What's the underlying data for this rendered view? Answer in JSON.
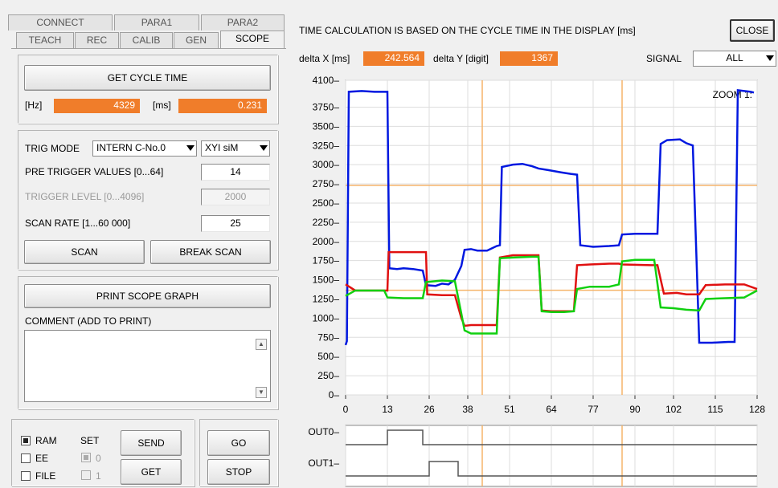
{
  "tabs_row1": [
    "CONNECT",
    "PARA1",
    "PARA2"
  ],
  "tabs_row2": [
    "TEACH",
    "REC",
    "CALIB",
    "GEN",
    "SCOPE"
  ],
  "active_tab": "SCOPE",
  "cycle": {
    "button": "GET CYCLE TIME",
    "hz_label": "[Hz]",
    "hz_value": "4329",
    "ms_label": "[ms]",
    "ms_value": "0.231"
  },
  "trigger": {
    "mode_label": "TRIG MODE",
    "mode_value": "INTERN C-No.0",
    "signal_value": "XYI siM",
    "pre_label": "PRE TRIGGER VALUES [0...64]",
    "pre_value": "14",
    "level_label": "TRIGGER LEVEL [0...4096]",
    "level_value": "2000",
    "rate_label": "SCAN RATE [1...60 000]",
    "rate_value": "25",
    "scan_button": "SCAN",
    "break_button": "BREAK SCAN"
  },
  "print": {
    "button": "PRINT SCOPE GRAPH",
    "comment_label": "COMMENT (ADD TO PRINT)"
  },
  "memory": {
    "ram": "RAM",
    "ee": "EE",
    "file": "FILE",
    "set": "SET",
    "set0": "0",
    "set1": "1",
    "send": "SEND",
    "get": "GET",
    "go": "GO",
    "stop": "STOP"
  },
  "header": {
    "info": "TIME CALCULATION IS BASED ON THE CYCLE TIME IN THE DISPLAY [ms]",
    "close": "CLOSE"
  },
  "deltas": {
    "dx_label": "delta X [ms]",
    "dx_value": "242.564",
    "dy_label": "delta Y [digit]",
    "dy_value": "1367",
    "signal_label": "SIGNAL",
    "signal_value": "ALL"
  },
  "zoom": "ZOOM 1:",
  "out_labels": [
    "OUT0",
    "OUT1"
  ],
  "chart_data": {
    "type": "line",
    "xlim": [
      0,
      128
    ],
    "ylim": [
      0,
      4100
    ],
    "xticks": [
      0,
      13,
      26,
      38,
      51,
      64,
      77,
      90,
      102,
      115,
      128
    ],
    "yticks": [
      0,
      250,
      500,
      750,
      1000,
      1250,
      1500,
      1750,
      2000,
      2250,
      2500,
      2750,
      3000,
      3250,
      3500,
      3750,
      4100
    ],
    "grid": true,
    "cursors_x": [
      42.5,
      86
    ],
    "cursors_y": [
      2730,
      1363
    ],
    "series": [
      {
        "color": "#0018e0",
        "points": [
          [
            0,
            650
          ],
          [
            0.4,
            700
          ],
          [
            1,
            3950
          ],
          [
            5,
            3960
          ],
          [
            9,
            3950
          ],
          [
            13,
            3950
          ],
          [
            13.6,
            1650
          ],
          [
            16,
            1640
          ],
          [
            18,
            1650
          ],
          [
            21,
            1640
          ],
          [
            24,
            1620
          ],
          [
            25,
            1430
          ],
          [
            28,
            1420
          ],
          [
            30,
            1450
          ],
          [
            32,
            1440
          ],
          [
            34,
            1500
          ],
          [
            36,
            1680
          ],
          [
            37,
            1890
          ],
          [
            39,
            1900
          ],
          [
            41,
            1880
          ],
          [
            44,
            1880
          ],
          [
            47,
            1940
          ],
          [
            48,
            1950
          ],
          [
            48.6,
            2970
          ],
          [
            52,
            3000
          ],
          [
            55,
            3010
          ],
          [
            58,
            2980
          ],
          [
            60,
            2950
          ],
          [
            63,
            2930
          ],
          [
            67,
            2900
          ],
          [
            70,
            2880
          ],
          [
            72,
            2870
          ],
          [
            73,
            1950
          ],
          [
            77,
            1930
          ],
          [
            82,
            1940
          ],
          [
            85,
            1950
          ],
          [
            86,
            2090
          ],
          [
            90,
            2100
          ],
          [
            97,
            2100
          ],
          [
            98,
            3270
          ],
          [
            100,
            3320
          ],
          [
            104,
            3330
          ],
          [
            106,
            3280
          ],
          [
            108,
            3250
          ],
          [
            110,
            680
          ],
          [
            114,
            680
          ],
          [
            119,
            690
          ],
          [
            121,
            690
          ],
          [
            122,
            3970
          ],
          [
            126,
            3950
          ],
          [
            127,
            3940
          ]
        ]
      },
      {
        "color": "#e01010",
        "points": [
          [
            0,
            1440
          ],
          [
            3,
            1360
          ],
          [
            13,
            1360
          ],
          [
            13.4,
            1860
          ],
          [
            18,
            1860
          ],
          [
            25,
            1860
          ],
          [
            25.4,
            1310
          ],
          [
            30,
            1300
          ],
          [
            34,
            1300
          ],
          [
            36,
            1000
          ],
          [
            37,
            900
          ],
          [
            39,
            910
          ],
          [
            44,
            910
          ],
          [
            47,
            910
          ],
          [
            48,
            1790
          ],
          [
            52,
            1820
          ],
          [
            58,
            1820
          ],
          [
            60,
            1820
          ],
          [
            61,
            1100
          ],
          [
            64,
            1090
          ],
          [
            68,
            1090
          ],
          [
            71,
            1090
          ],
          [
            72,
            1690
          ],
          [
            76,
            1700
          ],
          [
            82,
            1710
          ],
          [
            85,
            1710
          ],
          [
            86,
            1700
          ],
          [
            95,
            1690
          ],
          [
            97,
            1690
          ],
          [
            99,
            1320
          ],
          [
            103,
            1330
          ],
          [
            106,
            1310
          ],
          [
            110,
            1310
          ],
          [
            112,
            1430
          ],
          [
            118,
            1440
          ],
          [
            124,
            1440
          ],
          [
            128,
            1380
          ]
        ]
      },
      {
        "color": "#10d010",
        "points": [
          [
            0,
            1290
          ],
          [
            3,
            1360
          ],
          [
            12,
            1360
          ],
          [
            13,
            1270
          ],
          [
            18,
            1260
          ],
          [
            24,
            1260
          ],
          [
            25,
            1470
          ],
          [
            30,
            1490
          ],
          [
            34,
            1480
          ],
          [
            36,
            1060
          ],
          [
            37,
            840
          ],
          [
            39,
            800
          ],
          [
            44,
            800
          ],
          [
            47,
            800
          ],
          [
            48,
            1780
          ],
          [
            52,
            1790
          ],
          [
            58,
            1800
          ],
          [
            60,
            1800
          ],
          [
            61,
            1090
          ],
          [
            64,
            1080
          ],
          [
            68,
            1080
          ],
          [
            71,
            1090
          ],
          [
            72,
            1380
          ],
          [
            76,
            1410
          ],
          [
            82,
            1410
          ],
          [
            85,
            1440
          ],
          [
            86,
            1740
          ],
          [
            90,
            1760
          ],
          [
            96,
            1760
          ],
          [
            98,
            1140
          ],
          [
            102,
            1130
          ],
          [
            106,
            1110
          ],
          [
            110,
            1100
          ],
          [
            112,
            1250
          ],
          [
            118,
            1260
          ],
          [
            124,
            1270
          ],
          [
            128,
            1360
          ]
        ]
      }
    ]
  },
  "out_signals": {
    "out0": [
      [
        0,
        0
      ],
      [
        13,
        0
      ],
      [
        13,
        1
      ],
      [
        24,
        1
      ],
      [
        24,
        0
      ],
      [
        128,
        0
      ]
    ],
    "out1": [
      [
        0,
        0
      ],
      [
        26,
        0
      ],
      [
        26,
        1
      ],
      [
        35,
        1
      ],
      [
        35,
        0
      ],
      [
        128,
        0
      ]
    ]
  }
}
